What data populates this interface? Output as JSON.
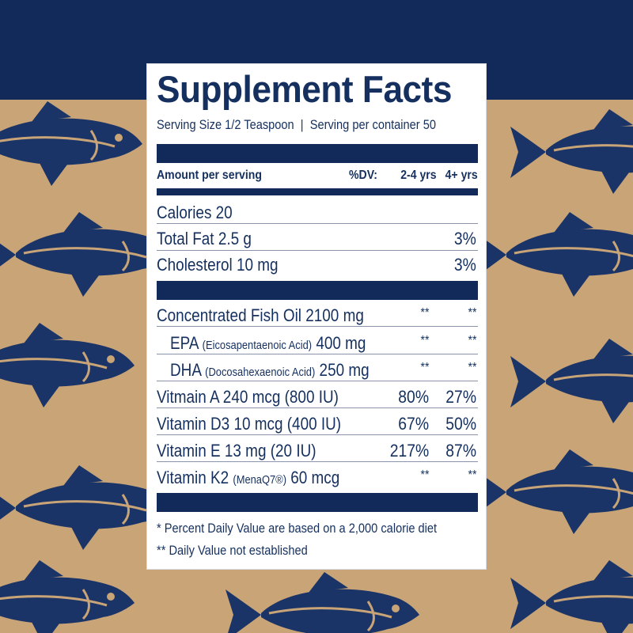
{
  "colors": {
    "navy": "#112a5a",
    "kraft": "#c9a477",
    "text": "#15305e"
  },
  "background": {
    "pattern": "fish-illustration-icon"
  },
  "label": {
    "title": "Supplement Facts",
    "serving": "Serving Size 1/2 Teaspoon  |  Serving per container 50",
    "header": {
      "amount": "Amount per serving",
      "dv": "%DV:",
      "col1": "2-4 yrs",
      "col2": "4+ yrs"
    },
    "rows": [
      {
        "label": "Calories 20",
        "sub": "",
        "tail": "",
        "c1": "",
        "c2": ""
      },
      {
        "label": "Total Fat 2.5 g",
        "sub": "",
        "tail": "",
        "c1": "",
        "c2": "3%"
      },
      {
        "label": "Cholesterol 10 mg",
        "sub": "",
        "tail": "",
        "c1": "",
        "c2": "3%"
      },
      {
        "label": "Concentrated Fish Oil 2100 mg",
        "sub": "",
        "tail": "",
        "c1": "**",
        "c2": "**"
      },
      {
        "label": "EPA ",
        "sub": "(Eicosapentaenoic Acid)",
        "tail": " 400 mg",
        "c1": "**",
        "c2": "**"
      },
      {
        "label": "DHA ",
        "sub": "(Docosahexaenoic Acid)",
        "tail": " 250 mg",
        "c1": "**",
        "c2": "**"
      },
      {
        "label": "Vitmain A 240 mcg (800 IU)",
        "sub": "",
        "tail": "",
        "c1": "80%",
        "c2": "27%"
      },
      {
        "label": "Vitamin D3 10 mcg (400 IU)",
        "sub": "",
        "tail": "",
        "c1": "67%",
        "c2": "50%"
      },
      {
        "label": "Vitamin E 13 mg (20 IU)",
        "sub": "",
        "tail": "",
        "c1": "217%",
        "c2": "87%"
      },
      {
        "label": "Vitamin K2 ",
        "sub": "(MenaQ7®)",
        "tail": " 60 mcg",
        "c1": "**",
        "c2": "**"
      }
    ],
    "footnotes": [
      "* Percent Daily Value are based on a 2,000 calorie diet",
      "** Daily Value not established"
    ]
  }
}
